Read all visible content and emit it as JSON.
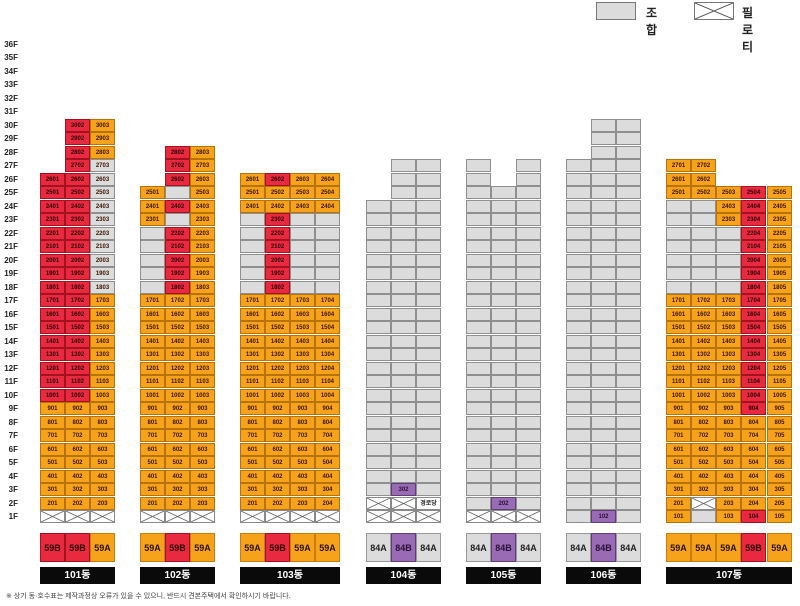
{
  "legend": {
    "union_label": "조합",
    "piloti_label": "필로티"
  },
  "floors": [
    "1F",
    "2F",
    "3F",
    "4F",
    "5F",
    "6F",
    "7F",
    "8F",
    "9F",
    "10F",
    "11F",
    "12F",
    "13F",
    "14F",
    "15F",
    "16F",
    "17F",
    "18F",
    "19F",
    "20F",
    "21F",
    "22F",
    "23F",
    "24F",
    "25F",
    "26F",
    "27F",
    "28F",
    "29F",
    "30F",
    "31F",
    "32F",
    "33F",
    "34F",
    "35F",
    "36F"
  ],
  "colors": {
    "orange": "#f7a21b",
    "red": "#e8293f",
    "gray": "#dcdcdc",
    "purple": "#9a6bb5"
  },
  "buildings": [
    {
      "name": "101동",
      "units": [
        "1",
        "2",
        "3"
      ],
      "types": [
        [
          "59B",
          "red"
        ],
        [
          "59B",
          "red"
        ],
        [
          "59A",
          "orange"
        ]
      ],
      "special": {
        "1": [
          "pil",
          "pil",
          "pil"
        ]
      },
      "floor_colors": {
        "2": [
          "orange",
          "orange",
          "orange"
        ],
        "3": [
          "orange",
          "orange",
          "orange"
        ],
        "4": [
          "orange",
          "orange",
          "orange"
        ],
        "5": [
          "orange",
          "orange",
          "orange"
        ],
        "6": [
          "orange",
          "orange",
          "orange"
        ],
        "7": [
          "orange",
          "orange",
          "orange"
        ],
        "8": [
          "orange",
          "orange",
          "orange"
        ],
        "9": [
          "orange",
          "orange",
          "orange"
        ],
        "10": [
          "red",
          "red",
          "orange"
        ],
        "11": [
          "red",
          "red",
          "orange"
        ],
        "12": [
          "red",
          "red",
          "orange"
        ],
        "13": [
          "red",
          "red",
          "orange"
        ],
        "14": [
          "red",
          "red",
          "orange"
        ],
        "15": [
          "red",
          "red",
          "orange"
        ],
        "16": [
          "red",
          "red",
          "orange"
        ],
        "17": [
          "red",
          "red",
          "orange"
        ],
        "18": [
          "red",
          "red",
          "gray"
        ],
        "19": [
          "red",
          "red",
          "gray"
        ],
        "20": [
          "red",
          "red",
          "gray"
        ],
        "21": [
          "red",
          "red",
          "gray"
        ],
        "22": [
          "red",
          "red",
          "gray"
        ],
        "23": [
          "red",
          "red",
          "gray"
        ],
        "24": [
          "red",
          "red",
          "gray"
        ],
        "25": [
          "red",
          "red",
          "gray"
        ],
        "26": [
          "red",
          "red",
          "gray"
        ],
        "27": [
          null,
          "red",
          "gray"
        ],
        "28": [
          null,
          "red",
          "orange"
        ],
        "29": [
          null,
          "red",
          "orange"
        ],
        "30": [
          null,
          "red",
          "orange"
        ]
      }
    },
    {
      "name": "102동",
      "units": [
        "1",
        "2",
        "3"
      ],
      "types": [
        [
          "59A",
          "orange"
        ],
        [
          "59B",
          "red"
        ],
        [
          "59A",
          "orange"
        ]
      ],
      "special": {
        "1": [
          "pil",
          "pil",
          "pil"
        ]
      },
      "floor_colors": {
        "2": [
          "orange",
          "orange",
          "orange"
        ],
        "3": [
          "orange",
          "orange",
          "orange"
        ],
        "4": [
          "orange",
          "orange",
          "orange"
        ],
        "5": [
          "orange",
          "orange",
          "orange"
        ],
        "6": [
          "orange",
          "orange",
          "orange"
        ],
        "7": [
          "orange",
          "orange",
          "orange"
        ],
        "8": [
          "orange",
          "orange",
          "orange"
        ],
        "9": [
          "orange",
          "orange",
          "orange"
        ],
        "10": [
          "orange",
          "orange",
          "orange"
        ],
        "11": [
          "orange",
          "orange",
          "orange"
        ],
        "12": [
          "orange",
          "orange",
          "orange"
        ],
        "13": [
          "orange",
          "orange",
          "orange"
        ],
        "14": [
          "orange",
          "orange",
          "orange"
        ],
        "15": [
          "orange",
          "orange",
          "orange"
        ],
        "16": [
          "orange",
          "orange",
          "orange"
        ],
        "17": [
          "orange",
          "orange",
          "orange"
        ],
        "18": [
          "gray",
          "red",
          "orange"
        ],
        "19": [
          "gray",
          "red",
          "orange"
        ],
        "20": [
          "gray",
          "red",
          "orange"
        ],
        "21": [
          "gray",
          "red",
          "orange"
        ],
        "22": [
          "gray",
          "red",
          "orange"
        ],
        "23": [
          "orange",
          "gray",
          "orange"
        ],
        "24": [
          "orange",
          "red",
          "orange"
        ],
        "25": [
          "orange",
          "gray",
          "orange"
        ],
        "26": [
          null,
          "red",
          "orange"
        ],
        "27": [
          null,
          "red",
          "orange"
        ],
        "28": [
          null,
          "red",
          "orange"
        ]
      },
      "hide_num": {
        "18": [
          1
        ],
        "19": [
          1
        ],
        "20": [
          1
        ],
        "21": [
          1
        ],
        "22": [
          1
        ],
        "23": [
          2
        ],
        "25": [
          2
        ]
      }
    },
    {
      "name": "103동",
      "units": [
        "1",
        "2",
        "3",
        "4"
      ],
      "types": [
        [
          "59A",
          "orange"
        ],
        [
          "59B",
          "red"
        ],
        [
          "59A",
          "orange"
        ],
        [
          "59A",
          "orange"
        ]
      ],
      "special": {
        "1": [
          "pil",
          "pil",
          "pil",
          "pil"
        ]
      },
      "floor_colors": {
        "2": [
          "orange",
          "orange",
          "orange",
          "orange"
        ],
        "3": [
          "orange",
          "orange",
          "orange",
          "orange"
        ],
        "4": [
          "orange",
          "orange",
          "orange",
          "orange"
        ],
        "5": [
          "orange",
          "orange",
          "orange",
          "orange"
        ],
        "6": [
          "orange",
          "orange",
          "orange",
          "orange"
        ],
        "7": [
          "orange",
          "orange",
          "orange",
          "orange"
        ],
        "8": [
          "orange",
          "orange",
          "orange",
          "orange"
        ],
        "9": [
          "orange",
          "orange",
          "orange",
          "orange"
        ],
        "10": [
          "orange",
          "orange",
          "orange",
          "orange"
        ],
        "11": [
          "orange",
          "orange",
          "orange",
          "orange"
        ],
        "12": [
          "orange",
          "orange",
          "orange",
          "orange"
        ],
        "13": [
          "orange",
          "orange",
          "orange",
          "orange"
        ],
        "14": [
          "orange",
          "orange",
          "orange",
          "orange"
        ],
        "15": [
          "orange",
          "orange",
          "orange",
          "orange"
        ],
        "16": [
          "orange",
          "orange",
          "orange",
          "orange"
        ],
        "17": [
          "orange",
          "orange",
          "orange",
          "orange"
        ],
        "18": [
          "gray",
          "red",
          "gray",
          "gray"
        ],
        "19": [
          "gray",
          "red",
          "gray",
          "gray"
        ],
        "20": [
          "gray",
          "red",
          "gray",
          "gray"
        ],
        "21": [
          "gray",
          "red",
          "gray",
          "gray"
        ],
        "22": [
          "gray",
          "red",
          "gray",
          "gray"
        ],
        "23": [
          "gray",
          "red",
          "gray",
          "gray"
        ],
        "24": [
          "orange",
          "orange",
          "orange",
          "orange"
        ],
        "25": [
          "orange",
          "orange",
          "orange",
          "orange"
        ],
        "26": [
          "orange",
          "red",
          "orange",
          "orange"
        ]
      },
      "hide_num": {
        "18": [
          1,
          3,
          4
        ],
        "19": [
          1,
          3,
          4
        ],
        "20": [
          1,
          3,
          4
        ],
        "21": [
          1,
          3,
          4
        ],
        "22": [
          1,
          3,
          4
        ],
        "23": [
          1,
          3,
          4
        ]
      }
    },
    {
      "name": "104동",
      "units": [
        "1",
        "2",
        "3"
      ],
      "types": [
        [
          "84A",
          "gray"
        ],
        [
          "84B",
          "purple"
        ],
        [
          "84A",
          "gray"
        ]
      ],
      "top_floors": [
        24,
        27,
        27
      ],
      "labeled": {
        "3": [
          null,
          "302",
          null
        ]
      },
      "colored": {
        "3": [
          null,
          "purple",
          null
        ]
      },
      "special": {
        "1": [
          "pil",
          "pil",
          "pil"
        ],
        "2": [
          "pil",
          "pil",
          "text:경로당"
        ]
      }
    },
    {
      "name": "105동",
      "units": [
        "1",
        "2",
        "3"
      ],
      "types": [
        [
          "84A",
          "gray"
        ],
        [
          "84B",
          "purple"
        ],
        [
          "84A",
          "gray"
        ]
      ],
      "top_floors": [
        27,
        25,
        27
      ],
      "labeled": {
        "2": [
          null,
          "202",
          null
        ]
      },
      "colored": {
        "2": [
          null,
          "purple",
          null
        ]
      },
      "special": {
        "1": [
          "pil",
          "pil",
          "pil"
        ]
      }
    },
    {
      "name": "106동",
      "units": [
        "1",
        "2",
        "3"
      ],
      "types": [
        [
          "84A",
          "gray"
        ],
        [
          "84B",
          "purple"
        ],
        [
          "84A",
          "gray"
        ]
      ],
      "top_floors": [
        27,
        30,
        30
      ],
      "labeled": {
        "1": [
          null,
          "102",
          null
        ]
      },
      "colored": {
        "1": [
          null,
          "purple",
          null
        ]
      },
      "special": {}
    },
    {
      "name": "107동",
      "units": [
        "1",
        "2",
        "3",
        "4",
        "5"
      ],
      "types": [
        [
          "59A",
          "orange"
        ],
        [
          "59A",
          "orange"
        ],
        [
          "59A",
          "orange"
        ],
        [
          "59B",
          "red"
        ],
        [
          "59A",
          "orange"
        ]
      ],
      "special": {
        "2": [
          null,
          "pil",
          null,
          null,
          null
        ]
      },
      "floor_colors": {
        "1": [
          "orange",
          "gray",
          "orange",
          "red",
          "orange"
        ],
        "2": [
          "orange",
          "pil",
          "orange",
          "orange",
          "orange"
        ],
        "3": [
          "orange",
          "orange",
          "orange",
          "orange",
          "orange"
        ],
        "4": [
          "orange",
          "orange",
          "orange",
          "orange",
          "orange"
        ],
        "5": [
          "orange",
          "orange",
          "orange",
          "orange",
          "orange"
        ],
        "6": [
          "orange",
          "orange",
          "orange",
          "orange",
          "orange"
        ],
        "7": [
          "orange",
          "orange",
          "orange",
          "orange",
          "orange"
        ],
        "8": [
          "orange",
          "orange",
          "orange",
          "orange",
          "orange"
        ],
        "9": [
          "orange",
          "orange",
          "orange",
          "red",
          "orange"
        ],
        "10": [
          "orange",
          "orange",
          "orange",
          "red",
          "orange"
        ],
        "11": [
          "orange",
          "orange",
          "orange",
          "red",
          "orange"
        ],
        "12": [
          "orange",
          "orange",
          "orange",
          "red",
          "orange"
        ],
        "13": [
          "orange",
          "orange",
          "orange",
          "red",
          "orange"
        ],
        "14": [
          "orange",
          "orange",
          "orange",
          "red",
          "orange"
        ],
        "15": [
          "orange",
          "orange",
          "orange",
          "red",
          "orange"
        ],
        "16": [
          "orange",
          "orange",
          "orange",
          "red",
          "orange"
        ],
        "17": [
          "orange",
          "orange",
          "orange",
          "red",
          "orange"
        ],
        "18": [
          "gray",
          "gray",
          "gray",
          "red",
          "orange"
        ],
        "19": [
          "gray",
          "gray",
          "gray",
          "red",
          "orange"
        ],
        "20": [
          "gray",
          "gray",
          "gray",
          "red",
          "orange"
        ],
        "21": [
          "gray",
          "gray",
          "gray",
          "red",
          "orange"
        ],
        "22": [
          "gray",
          "gray",
          "gray",
          "red",
          "orange"
        ],
        "23": [
          "gray",
          "gray",
          "orange",
          "red",
          "orange"
        ],
        "24": [
          "gray",
          "gray",
          "orange",
          "red",
          "orange"
        ],
        "25": [
          "orange",
          "orange",
          "orange",
          "red",
          "orange"
        ],
        "26": [
          "orange",
          "orange",
          null,
          null,
          null
        ],
        "27": [
          "orange",
          "orange",
          null,
          null,
          null
        ]
      },
      "hide_num": {
        "1": [
          2
        ],
        "18": [
          1,
          2,
          3
        ],
        "19": [
          1,
          2,
          3
        ],
        "20": [
          1,
          2,
          3
        ],
        "21": [
          1,
          2,
          3
        ],
        "22": [
          1,
          2,
          3
        ],
        "23": [
          1,
          2
        ],
        "24": [
          1,
          2
        ]
      }
    }
  ],
  "footnote": "※ 상기 동·호수표는 제작과정상 오류가 있을 수 있으니, 반드시 견본주택에서 확인하시기 바랍니다."
}
